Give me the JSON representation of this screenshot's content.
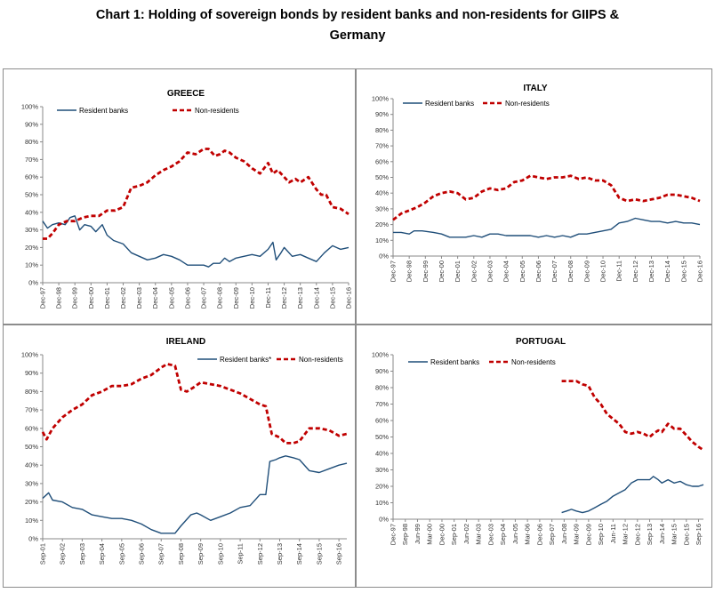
{
  "page": {
    "title_line1": "Chart 1: Holding of sovereign bonds by resident banks and non-residents for GIIPS &",
    "title_line2": "Germany"
  },
  "colors": {
    "resident": "#1f4e79",
    "nonresident": "#c00000",
    "axis": "#888888"
  },
  "chart_data": [
    {
      "type": "line",
      "title": "GREECE",
      "ylim": [
        0,
        100
      ],
      "yticks": [
        "0%",
        "10%",
        "20%",
        "30%",
        "40%",
        "50%",
        "60%",
        "70%",
        "80%",
        "90%",
        "100%"
      ],
      "xticks": [
        "Dec-97",
        "Dec-98",
        "Dec-99",
        "Dec-00",
        "Dec-01",
        "Dec-02",
        "Dec-03",
        "Dec-04",
        "Dec-05",
        "Dec-06",
        "Dec-07",
        "Dec-08",
        "Dec-09",
        "Dec-10",
        "Dec-11",
        "Dec-12",
        "Dec-13",
        "Dec-14",
        "Dec-15",
        "Dec-16"
      ],
      "x_range": [
        0,
        19
      ],
      "legend": [
        {
          "key": "resident",
          "label": "Resident banks"
        },
        {
          "key": "nonresident",
          "label": "Non-residents"
        }
      ],
      "series": [
        {
          "key": "resident",
          "name": "Resident banks",
          "x": [
            0,
            0.3,
            0.6,
            1.0,
            1.4,
            1.7,
            2.0,
            2.3,
            2.6,
            3.0,
            3.3,
            3.7,
            4.0,
            4.4,
            5.0,
            5.5,
            6.0,
            6.5,
            7.0,
            7.5,
            8.0,
            8.5,
            9.0,
            9.5,
            10.0,
            10.3,
            10.6,
            11.0,
            11.3,
            11.6,
            12.0,
            12.5,
            13.0,
            13.5,
            14.0,
            14.3,
            14.5,
            14.8,
            15.0,
            15.5,
            16.0,
            16.5,
            17.0,
            17.5,
            18.0,
            18.5,
            19.0
          ],
          "y": [
            35,
            31,
            33,
            34,
            33,
            37,
            38,
            30,
            33,
            32,
            29,
            33,
            27,
            24,
            22,
            17,
            15,
            13,
            14,
            16,
            15,
            13,
            10,
            10,
            10,
            9,
            11,
            11,
            14,
            12,
            14,
            15,
            16,
            15,
            19,
            23,
            13,
            17,
            20,
            15,
            16,
            14,
            12,
            17,
            21,
            19,
            20
          ]
        },
        {
          "key": "nonresident",
          "name": "Non-residents",
          "x": [
            0,
            0.3,
            0.6,
            1.0,
            1.5,
            2.0,
            2.5,
            3.0,
            3.5,
            4.0,
            4.5,
            5.0,
            5.5,
            6.0,
            6.5,
            7.0,
            7.5,
            8.0,
            8.5,
            9.0,
            9.5,
            10.0,
            10.3,
            10.7,
            11.0,
            11.3,
            11.6,
            12.0,
            12.5,
            13.0,
            13.5,
            14.0,
            14.3,
            14.6,
            15.0,
            15.3,
            15.7,
            16.0,
            16.5,
            17.0,
            17.3,
            17.6,
            18.0,
            18.5,
            19.0
          ],
          "y": [
            25,
            25,
            28,
            33,
            35,
            35,
            37,
            38,
            38,
            41,
            41,
            43,
            54,
            55,
            57,
            61,
            64,
            66,
            69,
            74,
            73,
            76,
            76,
            72,
            73,
            75,
            74,
            71,
            69,
            65,
            62,
            68,
            62,
            64,
            60,
            57,
            59,
            57,
            60,
            53,
            50,
            50,
            43,
            42,
            39
          ]
        }
      ]
    },
    {
      "type": "line",
      "title": "ITALY",
      "ylim": [
        0,
        100
      ],
      "yticks": [
        "0%",
        "10%",
        "20%",
        "30%",
        "40%",
        "50%",
        "60%",
        "70%",
        "80%",
        "90%",
        "100%"
      ],
      "xticks": [
        "Dec-97",
        "Dec-98",
        "Dec-99",
        "Dec-00",
        "Dec-01",
        "Dec-02",
        "Dec-03",
        "Dec-04",
        "Dec-05",
        "Dec-06",
        "Dec-07",
        "Dec-08",
        "Dec-09",
        "Dec-10",
        "Dec-11",
        "Dec-12",
        "Dec-13",
        "Dec-14",
        "Dec-15",
        "Dec-16"
      ],
      "x_range": [
        0,
        19
      ],
      "legend": [
        {
          "key": "resident",
          "label": "Resident banks"
        },
        {
          "key": "nonresident",
          "label": "Non-residents"
        }
      ],
      "series": [
        {
          "key": "resident",
          "name": "Resident banks",
          "x": [
            0,
            0.5,
            1.0,
            1.3,
            1.8,
            2.5,
            3.0,
            3.5,
            4.0,
            4.5,
            5.0,
            5.5,
            6.0,
            6.5,
            7.0,
            7.5,
            8.0,
            8.5,
            9.0,
            9.5,
            10.0,
            10.5,
            11.0,
            11.5,
            12.0,
            12.5,
            13.0,
            13.5,
            14.0,
            14.5,
            15.0,
            15.5,
            16.0,
            16.5,
            17.0,
            17.5,
            18.0,
            18.5,
            19.0
          ],
          "y": [
            15,
            15,
            14,
            16,
            16,
            15,
            14,
            12,
            12,
            12,
            13,
            12,
            14,
            14,
            13,
            13,
            13,
            13,
            12,
            13,
            12,
            13,
            12,
            14,
            14,
            15,
            16,
            17,
            21,
            22,
            24,
            23,
            22,
            22,
            21,
            22,
            21,
            21,
            20
          ]
        },
        {
          "key": "nonresident",
          "name": "Non-residents",
          "x": [
            0,
            0.5,
            1.0,
            1.5,
            2.0,
            2.5,
            3.0,
            3.5,
            4.0,
            4.5,
            5.0,
            5.5,
            6.0,
            6.5,
            7.0,
            7.5,
            8.0,
            8.5,
            9.0,
            9.5,
            10.0,
            10.5,
            11.0,
            11.5,
            12.0,
            12.5,
            13.0,
            13.5,
            14.0,
            14.5,
            15.0,
            15.5,
            16.0,
            16.5,
            17.0,
            17.5,
            18.0,
            18.5,
            19.0
          ],
          "y": [
            23,
            27,
            29,
            31,
            34,
            38,
            40,
            41,
            40,
            36,
            37,
            41,
            43,
            42,
            43,
            47,
            48,
            51,
            50,
            49,
            50,
            50,
            51,
            49,
            50,
            48,
            48,
            45,
            37,
            35,
            36,
            35,
            36,
            37,
            39,
            39,
            38,
            37,
            35
          ]
        }
      ]
    },
    {
      "type": "line",
      "title": "IRELAND",
      "ylim": [
        0,
        100
      ],
      "yticks": [
        "0%",
        "10%",
        "20%",
        "30%",
        "40%",
        "50%",
        "60%",
        "70%",
        "80%",
        "90%",
        "100%"
      ],
      "xticks": [
        "Sep-01",
        "Sep-02",
        "Sep-03",
        "Sep-04",
        "Sep-05",
        "Sep-06",
        "Sep-07",
        "Sep-08",
        "Sep-09",
        "Sep-10",
        "Sep-11",
        "Sep-12",
        "Sep-13",
        "Sep-14",
        "Sep-15",
        "Sep-16"
      ],
      "x_range": [
        0,
        15.4
      ],
      "legend": [
        {
          "key": "resident",
          "label": "Resident banks*"
        },
        {
          "key": "nonresident",
          "label": "Non-residents"
        }
      ],
      "series": [
        {
          "key": "resident",
          "name": "Resident banks*",
          "x": [
            0,
            0.3,
            0.5,
            1.0,
            1.5,
            2.0,
            2.5,
            3.0,
            3.5,
            4.0,
            4.5,
            5.0,
            5.5,
            6.0,
            6.5,
            6.7,
            7.0,
            7.5,
            7.8,
            8.0,
            8.5,
            9.0,
            9.5,
            10.0,
            10.5,
            11.0,
            11.3,
            11.5,
            11.8,
            12.0,
            12.3,
            12.7,
            13.0,
            13.5,
            14.0,
            14.5,
            15.0,
            15.4
          ],
          "y": [
            22,
            25,
            21,
            20,
            17,
            16,
            13,
            12,
            11,
            11,
            10,
            8,
            5,
            3,
            3,
            3,
            7,
            13,
            14,
            13,
            10,
            12,
            14,
            17,
            18,
            24,
            24,
            42,
            43,
            44,
            45,
            44,
            43,
            37,
            36,
            38,
            40,
            41
          ]
        },
        {
          "key": "nonresident",
          "name": "Non-residents",
          "x": [
            0,
            0.2,
            0.5,
            1.0,
            1.5,
            2.0,
            2.5,
            3.0,
            3.5,
            4.0,
            4.5,
            5.0,
            5.5,
            6.0,
            6.3,
            6.7,
            7.0,
            7.3,
            7.6,
            8.0,
            8.5,
            9.0,
            9.5,
            10.0,
            10.5,
            11.0,
            11.3,
            11.6,
            12.0,
            12.3,
            12.7,
            13.0,
            13.5,
            14.0,
            14.5,
            15.0,
            15.4
          ],
          "y": [
            58,
            54,
            60,
            66,
            70,
            73,
            78,
            80,
            83,
            83,
            84,
            87,
            89,
            93,
            95,
            94,
            81,
            80,
            82,
            85,
            84,
            83,
            81,
            79,
            76,
            73,
            72,
            57,
            55,
            52,
            52,
            53,
            60,
            60,
            59,
            56,
            57
          ]
        }
      ]
    },
    {
      "type": "line",
      "title": "PORTUGAL",
      "ylim": [
        0,
        100
      ],
      "yticks": [
        "0%",
        "10%",
        "20%",
        "30%",
        "40%",
        "50%",
        "60%",
        "70%",
        "80%",
        "90%",
        "100%"
      ],
      "xticks": [
        "Dec-97",
        "Sep-98",
        "Jun-99",
        "Mar-00",
        "Dec-00",
        "Sep-01",
        "Jun-02",
        "Mar-03",
        "Dec-03",
        "Sep-04",
        "Jun-05",
        "Mar-06",
        "Dec-06",
        "Sep-07",
        "Jun-08",
        "Mar-09",
        "Dec-09",
        "Sep-10",
        "Jun-11",
        "Mar-12",
        "Dec-12",
        "Sep-13",
        "Jun-14",
        "Mar-15",
        "Dec-15",
        "Sep-16"
      ],
      "x_range": [
        0,
        25.4
      ],
      "legend": [
        {
          "key": "resident",
          "label": "Resident banks"
        },
        {
          "key": "nonresident",
          "label": "Non-residents"
        }
      ],
      "series": [
        {
          "key": "resident",
          "name": "Resident banks",
          "x": [
            13.8,
            14.2,
            14.6,
            15.0,
            15.5,
            16.0,
            16.5,
            17.0,
            17.5,
            18.0,
            18.5,
            19.0,
            19.5,
            20.0,
            20.5,
            21.0,
            21.3,
            21.7,
            22.0,
            22.5,
            23.0,
            23.5,
            24.0,
            24.5,
            25.0,
            25.4
          ],
          "y": [
            4,
            5,
            6,
            5,
            4,
            5,
            7,
            9,
            11,
            14,
            16,
            18,
            22,
            24,
            24,
            24,
            26,
            24,
            22,
            24,
            22,
            23,
            21,
            20,
            20,
            21
          ]
        },
        {
          "key": "nonresident",
          "name": "Non-residents",
          "x": [
            13.8,
            14.2,
            14.6,
            15.0,
            15.5,
            16.0,
            16.5,
            17.0,
            17.5,
            18.0,
            18.5,
            19.0,
            19.5,
            20.0,
            20.5,
            21.0,
            21.3,
            21.7,
            22.0,
            22.5,
            23.0,
            23.5,
            24.0,
            24.5,
            25.0,
            25.4
          ],
          "y": [
            84,
            84,
            84,
            84,
            82,
            81,
            74,
            70,
            64,
            61,
            58,
            53,
            52,
            53,
            52,
            50,
            52,
            54,
            53,
            58,
            55,
            55,
            51,
            47,
            44,
            42
          ]
        }
      ]
    }
  ]
}
